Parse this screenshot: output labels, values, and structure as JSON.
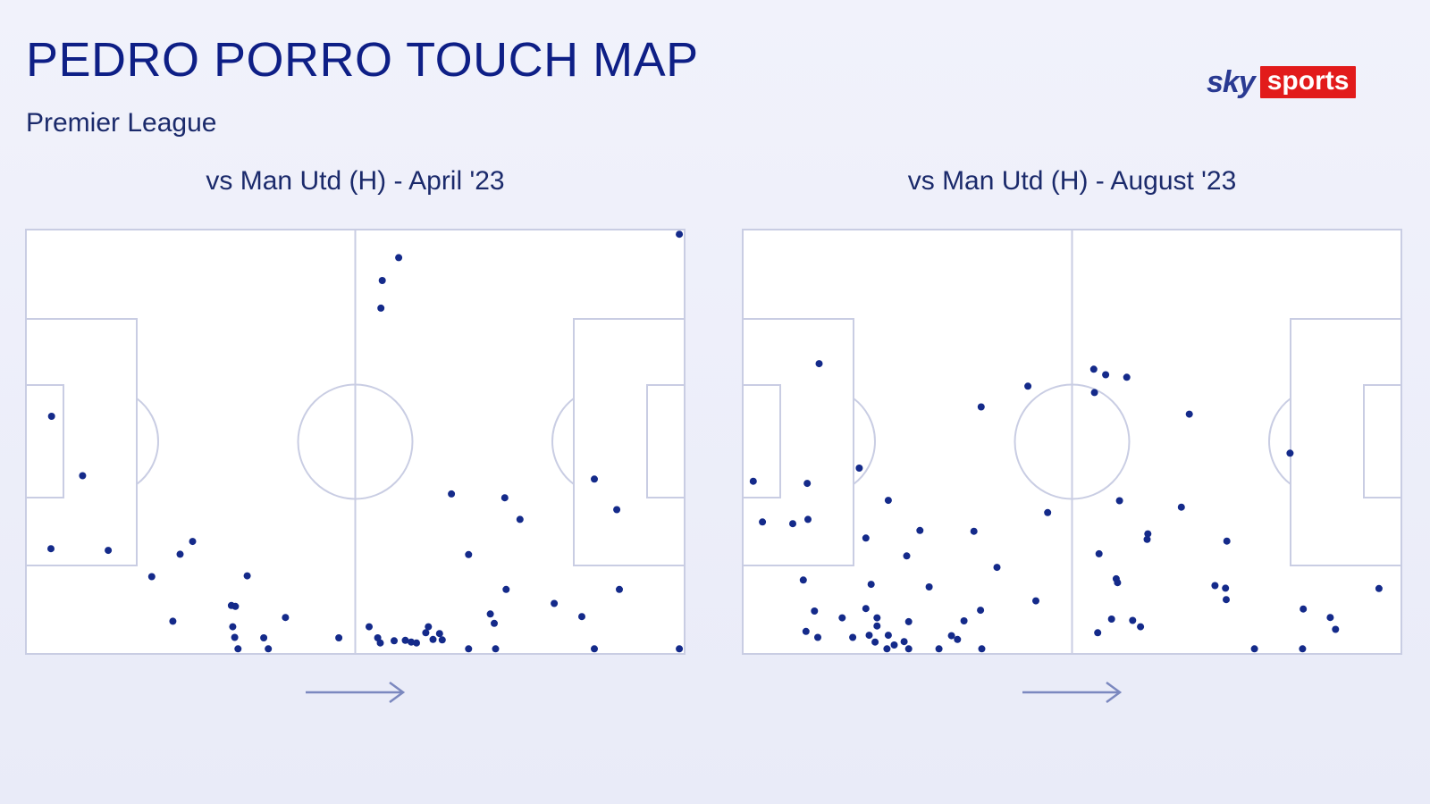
{
  "header": {
    "title": "PEDRO PORRO TOUCH MAP",
    "subtitle": "Premier League"
  },
  "logo": {
    "sky": "sky",
    "sports": "sports",
    "red": "#e21b1b"
  },
  "colors": {
    "dot": "#142a8a",
    "pitch_line": "#c9cde3",
    "arrow": "#7b88bf"
  },
  "chart_data": [
    {
      "type": "scatter",
      "title": "vs Man Utd (H) - April '23",
      "xlim": [
        0,
        100
      ],
      "ylim": [
        0,
        100
      ],
      "direction": "left-to-right",
      "points": [
        [
          99.2,
          1.1
        ],
        [
          56.6,
          6.6
        ],
        [
          54.1,
          12
        ],
        [
          53.9,
          18.5
        ],
        [
          3.9,
          44
        ],
        [
          8.6,
          58
        ],
        [
          86.3,
          58.8
        ],
        [
          64.6,
          62.3
        ],
        [
          72.7,
          63.2
        ],
        [
          89.7,
          66
        ],
        [
          3.8,
          75.2
        ],
        [
          12.5,
          75.6
        ],
        [
          75,
          68.3
        ],
        [
          25.3,
          73.5
        ],
        [
          23.4,
          76.5
        ],
        [
          67.2,
          76.6
        ],
        [
          33.6,
          81.6
        ],
        [
          19.1,
          81.8
        ],
        [
          72.9,
          84.8
        ],
        [
          90.1,
          84.8
        ],
        [
          31.2,
          88.6
        ],
        [
          31.8,
          88.8
        ],
        [
          80.2,
          88.1
        ],
        [
          70.5,
          90.6
        ],
        [
          84.4,
          91.2
        ],
        [
          39.4,
          91.4
        ],
        [
          22.3,
          92.3
        ],
        [
          71.1,
          92.8
        ],
        [
          31.4,
          93.6
        ],
        [
          52.1,
          93.6
        ],
        [
          61.1,
          93.6
        ],
        [
          60.7,
          95
        ],
        [
          62.8,
          95.2
        ],
        [
          31.7,
          96.1
        ],
        [
          36.1,
          96.2
        ],
        [
          47.5,
          96.2
        ],
        [
          53.4,
          96.2
        ],
        [
          55.9,
          96.9
        ],
        [
          57.6,
          96.8
        ],
        [
          58.5,
          97.2
        ],
        [
          59.3,
          97.4
        ],
        [
          61.8,
          96.6
        ],
        [
          63.2,
          96.7
        ],
        [
          53.8,
          97.4
        ],
        [
          32.2,
          98.8
        ],
        [
          36.8,
          98.8
        ],
        [
          67.2,
          98.8
        ],
        [
          71.3,
          98.8
        ],
        [
          86.3,
          98.8
        ],
        [
          99.2,
          98.8
        ]
      ]
    },
    {
      "type": "scatter",
      "title": "vs Man Utd (H) - August '23",
      "xlim": [
        0,
        100
      ],
      "ylim": [
        0,
        100
      ],
      "direction": "left-to-right",
      "points": [
        [
          11.6,
          31.6
        ],
        [
          53.3,
          32.9
        ],
        [
          55.1,
          34.2
        ],
        [
          58.3,
          34.8
        ],
        [
          43.3,
          36.9
        ],
        [
          53.4,
          38.4
        ],
        [
          36.2,
          41.8
        ],
        [
          67.8,
          43.5
        ],
        [
          83.1,
          52.7
        ],
        [
          17.7,
          56.2
        ],
        [
          1.6,
          59.3
        ],
        [
          9.8,
          59.8
        ],
        [
          22.1,
          63.8
        ],
        [
          57.2,
          63.9
        ],
        [
          66.6,
          65.4
        ],
        [
          46.3,
          66.7
        ],
        [
          3,
          68.9
        ],
        [
          7.6,
          69.3
        ],
        [
          9.9,
          68.3
        ],
        [
          26.9,
          70.9
        ],
        [
          35.1,
          71.1
        ],
        [
          61.5,
          71.7
        ],
        [
          61.4,
          73
        ],
        [
          18.7,
          72.7
        ],
        [
          73.5,
          73.4
        ],
        [
          24.9,
          76.9
        ],
        [
          54.1,
          76.4
        ],
        [
          38.6,
          79.6
        ],
        [
          56.7,
          82.3
        ],
        [
          56.9,
          83.2
        ],
        [
          9.2,
          82.6
        ],
        [
          19.5,
          83.6
        ],
        [
          28.3,
          84.2
        ],
        [
          71.7,
          83.9
        ],
        [
          73.3,
          84.5
        ],
        [
          73.4,
          87.2
        ],
        [
          44.5,
          87.5
        ],
        [
          85.1,
          89.4
        ],
        [
          10.9,
          89.9
        ],
        [
          36.1,
          89.7
        ],
        [
          15.1,
          91.5
        ],
        [
          18.7,
          89.3
        ],
        [
          20.4,
          91.5
        ],
        [
          20.4,
          93.4
        ],
        [
          25.2,
          92.4
        ],
        [
          33.6,
          92.2
        ],
        [
          56,
          91.8
        ],
        [
          59.2,
          92.1
        ],
        [
          60.4,
          93.6
        ],
        [
          90,
          94.2
        ],
        [
          89.2,
          91.4
        ],
        [
          9.6,
          94.7
        ],
        [
          11.4,
          96.1
        ],
        [
          16.7,
          96.1
        ],
        [
          19.2,
          95.6
        ],
        [
          20.1,
          97.2
        ],
        [
          22.1,
          95.6
        ],
        [
          23,
          97.9
        ],
        [
          24.5,
          97.1
        ],
        [
          31.7,
          95.7
        ],
        [
          32.6,
          96.6
        ],
        [
          53.9,
          95
        ],
        [
          21.9,
          98.8
        ],
        [
          25.2,
          98.8
        ],
        [
          29.8,
          98.8
        ],
        [
          36.3,
          98.8
        ],
        [
          77.7,
          98.8
        ],
        [
          85,
          98.8
        ],
        [
          96.6,
          84.6
        ]
      ]
    }
  ]
}
